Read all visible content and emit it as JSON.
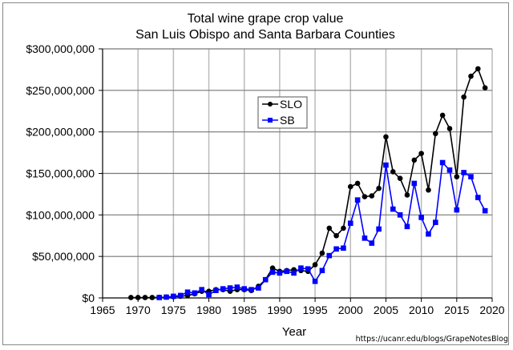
{
  "chart_data": {
    "type": "line",
    "title": "Total wine grape crop value",
    "subtitle": "San Luis Obispo and Santa Barbara Counties",
    "xlabel": "Year",
    "ylabel": "",
    "xlim": [
      1965,
      2020
    ],
    "ylim": [
      0,
      300000000
    ],
    "x_ticks": [
      "1965",
      "1970",
      "1975",
      "1980",
      "1985",
      "1990",
      "1995",
      "2000",
      "2005",
      "2010",
      "2015",
      "2020"
    ],
    "y_ticks": [
      "$0",
      "$50,000,000",
      "$100,000,000",
      "$150,000,000",
      "$200,000,000",
      "$250,000,000",
      "$300,000,000"
    ],
    "grid": true,
    "legend_position": "upper-center-left",
    "series": [
      {
        "name": "SLO",
        "color": "#000000",
        "marker": "circle",
        "x": [
          1969,
          1970,
          1971,
          1972,
          1973,
          1974,
          1975,
          1976,
          1977,
          1978,
          1979,
          1980,
          1981,
          1982,
          1983,
          1984,
          1985,
          1986,
          1987,
          1988,
          1989,
          1990,
          1991,
          1992,
          1993,
          1994,
          1995,
          1996,
          1997,
          1998,
          1999,
          2000,
          2001,
          2002,
          2003,
          2004,
          2005,
          2006,
          2007,
          2008,
          2009,
          2010,
          2011,
          2012,
          2013,
          2014,
          2015,
          2016,
          2017,
          2018,
          2019
        ],
        "values": [
          0.5,
          0.5,
          0.5,
          0.5,
          0.8,
          1,
          1.5,
          2,
          3,
          5,
          8,
          8,
          10,
          10,
          8,
          10,
          10,
          9,
          14,
          22,
          36,
          32,
          33,
          34,
          33,
          32,
          40,
          54,
          84,
          75,
          84,
          134,
          138,
          122,
          123,
          132,
          194,
          152,
          144,
          124,
          166,
          174,
          130,
          198,
          220,
          204,
          146,
          242,
          267,
          276,
          253
        ]
      },
      {
        "name": "SB",
        "color": "#0000ff",
        "marker": "square",
        "x": [
          1973,
          1974,
          1975,
          1976,
          1977,
          1978,
          1979,
          1980,
          1981,
          1982,
          1983,
          1984,
          1985,
          1986,
          1987,
          1988,
          1989,
          1990,
          1991,
          1992,
          1993,
          1994,
          1995,
          1996,
          1997,
          1998,
          1999,
          2000,
          2001,
          2002,
          2003,
          2004,
          2005,
          2006,
          2007,
          2008,
          2009,
          2010,
          2011,
          2012,
          2013,
          2014,
          2015,
          2016,
          2017,
          2018,
          2019
        ],
        "values": [
          0.5,
          1,
          2,
          3,
          7,
          6,
          10,
          4,
          9,
          11,
          12,
          13,
          11,
          10,
          12,
          22,
          31,
          30,
          32,
          30,
          36,
          35,
          20,
          33,
          51,
          59,
          60,
          90,
          118,
          72,
          66,
          83,
          160,
          107,
          100,
          86,
          138,
          97,
          77,
          91,
          163,
          154,
          106,
          151,
          146,
          121,
          105
        ]
      }
    ],
    "units": "USD millions (values scaled ×1,000,000)"
  },
  "labels": {
    "title": "Total wine grape crop value",
    "subtitle": "San Luis Obispo and Santa Barbara Counties",
    "xlabel": "Year",
    "legend_slo": "SLO",
    "legend_sb": "SB",
    "source": "https://ucanr.edu/blogs/GrapeNotesBlog"
  }
}
